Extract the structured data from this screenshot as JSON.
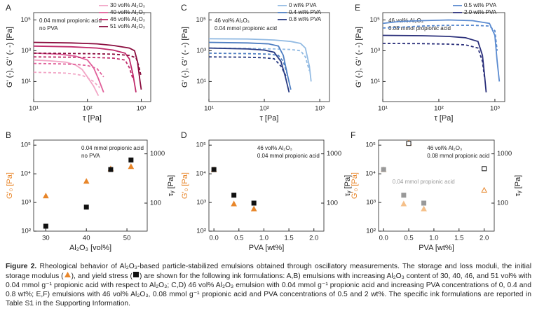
{
  "chart_data": [
    {
      "type": "line",
      "title": "A",
      "xlabel": "τ [Pa]",
      "ylabel": "G' (-), G'' (- -) [Pa]",
      "log_x": true,
      "log_y": true,
      "xlim": [
        10,
        1500
      ],
      "xticks": [
        {
          "value": 10,
          "label": "10¹"
        },
        {
          "value": 100,
          "label": "10²"
        },
        {
          "value": 1000,
          "label": "10³"
        }
      ],
      "ylim": [
        0.5,
        300000
      ],
      "yticks": [
        {
          "value": 10,
          "label": "10¹"
        },
        {
          "value": 1000,
          "label": "10³"
        },
        {
          "value": 100000,
          "label": "10⁵"
        }
      ],
      "annotations": [
        "0.04 mmol propionic acid",
        "no PVA"
      ],
      "series": [
        {
          "name": "30 vol% Al₂O₃",
          "color": "#f2a6c6",
          "x": [
            10,
            20,
            40,
            60,
            80,
            100,
            130,
            160
          ],
          "values": [
            250,
            220,
            180,
            120,
            60,
            20,
            5,
            1.2
          ],
          "loss_x": [
            10,
            20,
            40,
            60,
            80,
            100,
            130,
            170
          ],
          "loss_values": [
            40,
            38,
            35,
            30,
            25,
            18,
            10,
            4
          ]
        },
        {
          "name": "40 vol% Al₂O₃",
          "color": "#e0609a",
          "x": [
            10,
            30,
            60,
            100,
            130,
            160,
            200
          ],
          "values": [
            700,
            600,
            450,
            250,
            80,
            15,
            2
          ],
          "loss_x": [
            10,
            30,
            60,
            100,
            150,
            200
          ],
          "loss_values": [
            150,
            140,
            130,
            110,
            70,
            20
          ]
        },
        {
          "name": "46 vol% Al₂O₃",
          "color": "#c02a6a",
          "x": [
            10,
            50,
            150,
            300,
            500,
            600,
            700,
            800
          ],
          "values": [
            2000,
            1800,
            1500,
            1100,
            700,
            300,
            30,
            2
          ],
          "loss_x": [
            10,
            50,
            150,
            300,
            500,
            600,
            700
          ],
          "loss_values": [
            400,
            380,
            360,
            330,
            250,
            80,
            15
          ]
        },
        {
          "name": "51 vol% Al₂O₃",
          "color": "#8a0c3e",
          "x": [
            10,
            50,
            150,
            300,
            600,
            750,
            850,
            950,
            1000
          ],
          "values": [
            3500,
            3200,
            2800,
            2200,
            1500,
            1000,
            200,
            10,
            3
          ],
          "loss_x": [
            10,
            100,
            300,
            600,
            800,
            900,
            1000
          ],
          "loss_values": [
            700,
            650,
            600,
            500,
            350,
            100,
            20
          ]
        }
      ]
    },
    {
      "type": "line",
      "title": "C",
      "xlabel": "τ [Pa]",
      "ylabel": "G' (-), G'' (- -) [Pa]",
      "log_x": true,
      "log_y": true,
      "xlim": [
        10,
        1500
      ],
      "xticks": [
        {
          "value": 10,
          "label": "10¹"
        },
        {
          "value": 100,
          "label": "10²"
        },
        {
          "value": 1000,
          "label": "10³"
        }
      ],
      "ylim": [
        0.5,
        300000
      ],
      "yticks": [
        {
          "value": 10,
          "label": "10¹"
        },
        {
          "value": 1000,
          "label": "10³"
        },
        {
          "value": 100000,
          "label": "10⁵"
        }
      ],
      "annotations": [
        "46 vol% Al₂O₃",
        "0.04 mmol propionic acid"
      ],
      "series": [
        {
          "name": "0 wt% PVA",
          "color": "#93bbe3",
          "x": [
            10,
            50,
            150,
            300,
            450,
            550,
            650,
            700
          ],
          "values": [
            6000,
            5800,
            5000,
            4000,
            3000,
            1500,
            100,
            10
          ],
          "loss_x": [
            10,
            50,
            150,
            300,
            450,
            550,
            650
          ],
          "loss_values": [
            1500,
            1400,
            1300,
            1200,
            1000,
            400,
            50
          ]
        },
        {
          "name": "0.4 wt% PVA",
          "color": "#4f7fc2",
          "x": [
            10,
            50,
            120,
            180,
            220,
            260,
            300
          ],
          "values": [
            3500,
            3200,
            2800,
            2000,
            500,
            30,
            3
          ],
          "loss_x": [
            10,
            50,
            120,
            180,
            220,
            260
          ],
          "loss_values": [
            700,
            650,
            600,
            500,
            200,
            30
          ]
        },
        {
          "name": "0.8 wt% PVA",
          "color": "#283a82",
          "x": [
            10,
            50,
            100,
            150,
            200,
            240,
            280
          ],
          "values": [
            1500,
            1300,
            1100,
            800,
            200,
            20,
            2
          ],
          "loss_x": [
            10,
            50,
            100,
            150,
            200,
            250
          ],
          "loss_values": [
            400,
            380,
            350,
            300,
            100,
            20
          ]
        }
      ]
    },
    {
      "type": "line",
      "title": "E",
      "xlabel": "τ [Pa]",
      "ylabel": "G' (-), G'' (- -) [Pa]",
      "log_x": true,
      "log_y": true,
      "xlim": [
        10,
        1500
      ],
      "xticks": [
        {
          "value": 10,
          "label": "10¹"
        },
        {
          "value": 100,
          "label": "10²"
        },
        {
          "value": 1000,
          "label": "10³"
        }
      ],
      "ylim": [
        0.5,
        300000
      ],
      "yticks": [
        {
          "value": 10,
          "label": "10¹"
        },
        {
          "value": 1000,
          "label": "10³"
        },
        {
          "value": 100000,
          "label": "10⁵"
        }
      ],
      "annotations": [
        "46 vol% Al₂O₃",
        "0.08 mmol propionic acid"
      ],
      "series": [
        {
          "name": "0.5 wt% PVA",
          "color": "#5b8bd0",
          "x": [
            10,
            20,
            50,
            150,
            400,
            800,
            1000,
            1100,
            1200
          ],
          "values": [
            60000,
            80000,
            90000,
            100000,
            90000,
            60000,
            10000,
            200,
            10
          ],
          "loss_x": [
            10,
            50,
            150,
            400,
            800,
            1000,
            1100
          ],
          "loss_values": [
            30000,
            40000,
            45000,
            45000,
            40000,
            20000,
            1000
          ]
        },
        {
          "name": "2.0 wt% PVA",
          "color": "#2a2f7a",
          "x": [
            10,
            50,
            150,
            300,
            500,
            600,
            650,
            700
          ],
          "values": [
            10000,
            9500,
            8500,
            7000,
            4000,
            500,
            30,
            2
          ],
          "loss_x": [
            10,
            50,
            150,
            300,
            500,
            600,
            650
          ],
          "loss_values": [
            3000,
            2900,
            2700,
            2400,
            1500,
            200,
            20
          ]
        }
      ]
    },
    {
      "type": "scatter",
      "title": "B",
      "xlabel": "Al₂O₃ [vol%]",
      "ylabel": "G'₀ [Pa]",
      "y2label": "τᵧ [Pa]",
      "log_y": true,
      "xlim": [
        27,
        55
      ],
      "xticks": [
        30,
        40,
        50
      ],
      "ylim": [
        100,
        150000
      ],
      "yticks": [
        {
          "value": 100,
          "label": "10²"
        },
        {
          "value": 1000,
          "label": "10³"
        },
        {
          "value": 10000,
          "label": "10⁴"
        },
        {
          "value": 100000,
          "label": "10⁵"
        }
      ],
      "y2lim": [
        27,
        1900
      ],
      "y2ticks": [
        100,
        1000
      ],
      "ylabel_color": "#e8862a",
      "annotations": [
        "0.04 mmol propionic acid",
        "no PVA"
      ],
      "series": [
        {
          "color": "#e8862a",
          "marker": "triangle",
          "filled": true,
          "x": [
            30,
            40,
            46,
            51
          ],
          "values": [
            1700,
            5500,
            15000,
            18000
          ]
        },
        {
          "color": "#111",
          "marker": "square",
          "filled": true,
          "axis": "y2",
          "x": [
            30,
            40,
            46,
            51
          ],
          "values": [
            34,
            83,
            480,
            750
          ]
        }
      ]
    },
    {
      "type": "scatter",
      "title": "D",
      "xlabel": "PVA [wt%]",
      "ylabel": "G'₀ [Pa]",
      "y2label": "τᵧ [Pa]",
      "log_y": true,
      "xlim": [
        -0.1,
        2.2
      ],
      "xticks": [
        {
          "value": 0,
          "label": "0.0"
        },
        {
          "value": 0.5,
          "label": "0.5"
        },
        {
          "value": 1,
          "label": "1.0"
        },
        {
          "value": 1.5,
          "label": "1.5"
        },
        {
          "value": 2,
          "label": "2.0"
        }
      ],
      "ylim": [
        100,
        150000
      ],
      "yticks": [
        {
          "value": 100,
          "label": "10²"
        },
        {
          "value": 1000,
          "label": "10³"
        },
        {
          "value": 10000,
          "label": "10⁴"
        },
        {
          "value": 100000,
          "label": "10⁵"
        }
      ],
      "y2lim": [
        27,
        1900
      ],
      "y2ticks": [
        100,
        1000
      ],
      "ylabel_color": "#e8862a",
      "annotations": [
        "46 vol% Al₂O₃",
        "0.04 mmol propionic acid"
      ],
      "series": [
        {
          "color": "#e8862a",
          "marker": "triangle",
          "filled": true,
          "x": [
            0,
            0.4,
            0.8
          ],
          "values": [
            14000,
            900,
            600
          ]
        },
        {
          "color": "#111",
          "marker": "square",
          "filled": true,
          "axis": "y2",
          "x": [
            0,
            0.4,
            0.8
          ],
          "values": [
            480,
            145,
            100
          ]
        }
      ]
    },
    {
      "type": "scatter",
      "title": "F",
      "xlabel": "PVA [wt%]",
      "ylabel": "G'₀ [Pa]",
      "y2label": "τᵧ [Pa]",
      "log_y": true,
      "xlim": [
        -0.1,
        2.2
      ],
      "xticks": [
        {
          "value": 0,
          "label": "0.0"
        },
        {
          "value": 0.5,
          "label": "0.5"
        },
        {
          "value": 1,
          "label": "1.0"
        },
        {
          "value": 1.5,
          "label": "1.5"
        },
        {
          "value": 2,
          "label": "2.0"
        }
      ],
      "ylim": [
        100,
        150000
      ],
      "yticks": [
        {
          "value": 100,
          "label": "10²"
        },
        {
          "value": 1000,
          "label": "10³"
        },
        {
          "value": 10000,
          "label": "10⁴"
        },
        {
          "value": 100000,
          "label": "10⁵"
        }
      ],
      "y2lim": [
        27,
        1900
      ],
      "y2ticks": [
        100,
        1000
      ],
      "ylabel_color": "#e8862a",
      "annotations": [
        "46 vol% Al₂O₃",
        "0.08 mmol propionic acid"
      ],
      "note": "0.04 mmol propionic acid",
      "note_color": "#999",
      "series": [
        {
          "color": "#f5c08a",
          "marker": "triangle",
          "filled": true,
          "x": [
            0,
            0.4,
            0.8
          ],
          "values": [
            14000,
            900,
            600
          ]
        },
        {
          "color": "#999",
          "marker": "square",
          "filled": true,
          "axis": "y2",
          "x": [
            0,
            0.4,
            0.8
          ],
          "values": [
            480,
            145,
            100
          ]
        },
        {
          "color": "#e8862a",
          "marker": "triangle",
          "filled": false,
          "x": [
            0.5,
            2
          ],
          "values": [
            120000,
            2700
          ]
        },
        {
          "color": "#111",
          "marker": "square",
          "filled": false,
          "axis": "y2",
          "x": [
            0.5,
            2
          ],
          "values": [
            1630,
            500
          ]
        }
      ]
    }
  ],
  "caption": {
    "label": "Figure 2.",
    "parts": [
      "Rheological behavior of Al₂O₃-based particle-stabilized emulsions obtained through oscillatory measurements. The storage and loss moduli, the initial storage modulus (",
      "), and yield stress (",
      ") are shown for the following ink formulations: A,B) emulsions with increasing Al₂O₃ content of 30, 40, 46, and 51 vol% with 0.04 mmol g⁻¹ propionic acid with respect to Al₂O₃; C,D) 46 vol% Al₂O₃ emulsion with 0.04 mmol g⁻¹ propionic acid and increasing PVA concentrations of 0, 0.4 and 0.8 wt%; E,F) emulsions with 46 vol% Al₂O₃, 0.08 mmol g⁻¹ propionic acid and PVA concentrations of 0.5 and 2 wt%. The specific ink formulations are reported in Table S1 in the Supporting Information."
    ]
  }
}
